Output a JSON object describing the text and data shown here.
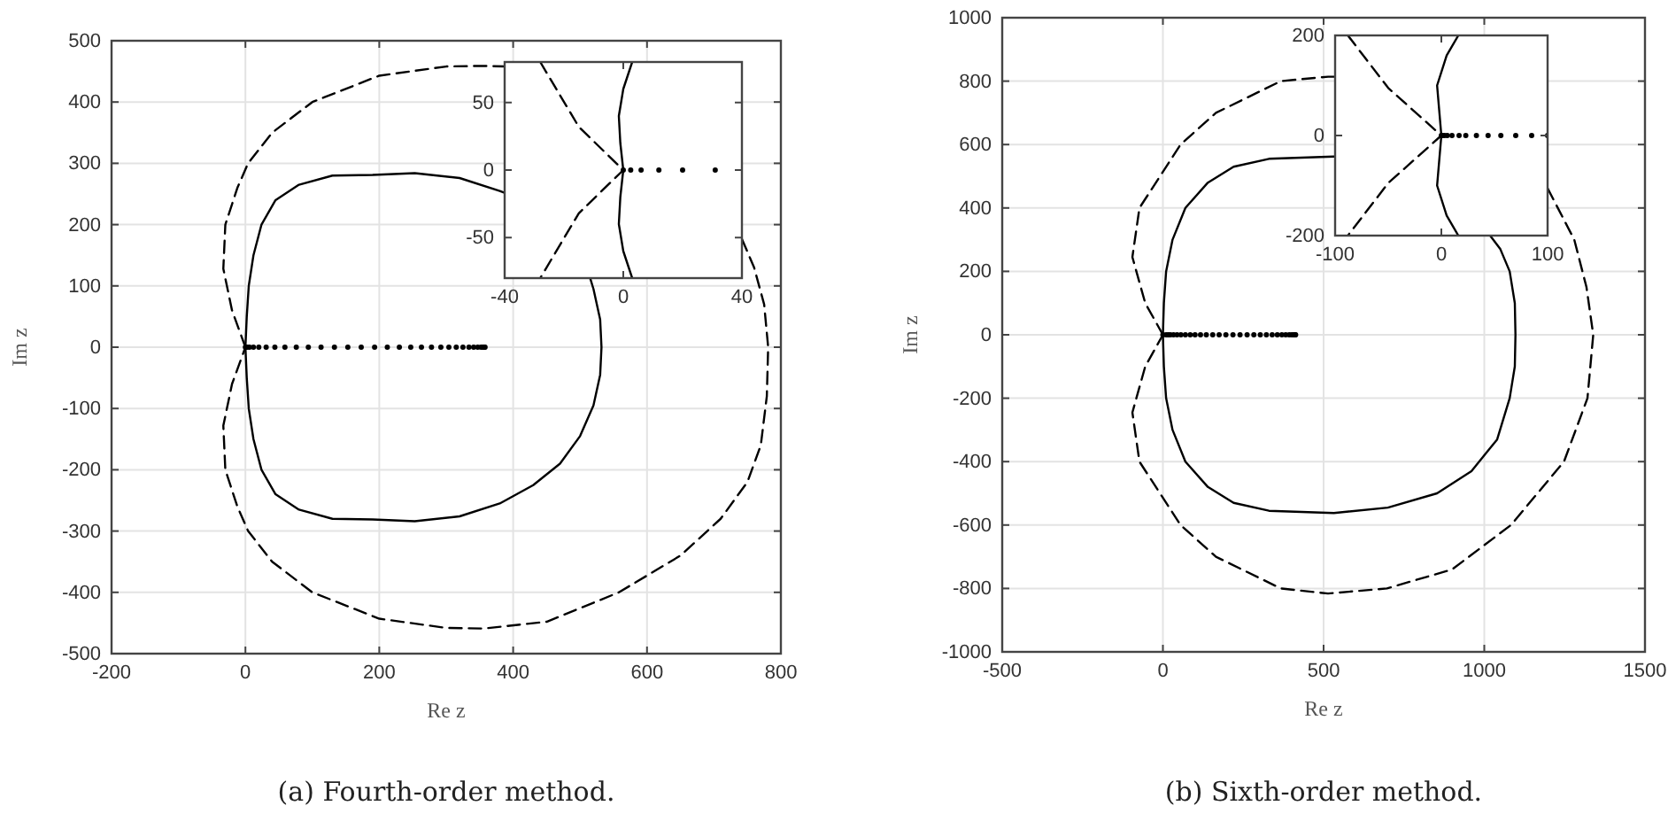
{
  "chart_data": [
    {
      "type": "line",
      "xlabel": "Re z",
      "ylabel": "Im z",
      "xlim": [
        -200,
        800
      ],
      "ylim": [
        -500,
        500
      ],
      "xticks": [
        -200,
        0,
        200,
        400,
        600,
        800
      ],
      "yticks": [
        -500,
        -400,
        -300,
        -200,
        -100,
        0,
        100,
        200,
        300,
        400,
        500
      ],
      "grid": true,
      "annotations": [
        "(a) Fourth-order method."
      ],
      "series": [
        {
          "line_style": "solid",
          "color": "#000000",
          "x": [
            0,
            2,
            5,
            12,
            24,
            45,
            80,
            130,
            190,
            253,
            320,
            380,
            387,
            430,
            470,
            500,
            515,
            520,
            530,
            532,
            530,
            520,
            500,
            470,
            430,
            380,
            320,
            253,
            190,
            130,
            80,
            45,
            24,
            12,
            5,
            2,
            0
          ],
          "values": [
            0,
            50,
            100,
            150,
            200,
            240,
            265,
            280,
            281,
            284,
            276,
            255,
            252,
            null,
            null,
            null,
            113,
            95,
            45,
            0,
            -45,
            -95,
            -145,
            -190,
            -225,
            -255,
            -276,
            -284,
            -281,
            -280,
            -265,
            -240,
            -200,
            -150,
            -100,
            -50,
            0
          ]
        },
        {
          "line_style": "dashed",
          "color": "#000000",
          "x": [
            0,
            -20,
            -33,
            -30,
            -12,
            4,
            40,
            100,
            200,
            300,
            356,
            387,
            450,
            558,
            650,
            710,
            742,
            760,
            775,
            781,
            779,
            770,
            750,
            710,
            650,
            558,
            450,
            356,
            300,
            200,
            100,
            40,
            4,
            -12,
            -30,
            -33,
            -20,
            0
          ],
          "values": [
            0,
            60,
            128,
            200,
            260,
            300,
            350,
            400,
            443,
            458,
            459,
            458,
            null,
            null,
            null,
            null,
            176,
            130,
            70,
            0,
            -80,
            -160,
            -220,
            -280,
            -340,
            -400,
            -448,
            -459,
            -458,
            -443,
            -400,
            -350,
            -300,
            -260,
            -200,
            -128,
            -60,
            0
          ]
        },
        {
          "type": "scatter",
          "marker": "circle",
          "color": "#000000",
          "x": [
            0,
            2.5,
            6,
            12,
            20,
            31,
            44,
            59,
            76,
            94,
            113,
            133,
            153,
            173,
            193,
            212,
            230,
            247,
            263,
            278,
            292,
            304,
            315,
            325,
            334,
            341,
            347,
            352,
            355,
            357,
            358
          ],
          "values": [
            0,
            0,
            0,
            0,
            0,
            0,
            0,
            0,
            0,
            0,
            0,
            0,
            0,
            0,
            0,
            0,
            0,
            0,
            0,
            0,
            0,
            0,
            0,
            0,
            0,
            0,
            0,
            0,
            0,
            0,
            0
          ]
        }
      ]
    },
    {
      "type": "line",
      "xlim": [
        -40,
        40
      ],
      "ylim": [
        -80,
        80
      ],
      "xticks": [
        -40,
        0,
        40
      ],
      "yticks": [
        -50,
        0,
        50
      ],
      "series": [
        {
          "line_style": "solid",
          "color": "#000000",
          "x": [
            3,
            0,
            -1.5,
            -1,
            0,
            -1,
            -1.5,
            0,
            3
          ],
          "values": [
            -80,
            -60,
            -40,
            -20,
            0,
            20,
            40,
            60,
            80
          ]
        },
        {
          "line_style": "dashed",
          "color": "#000000",
          "x": [
            -28,
            -15,
            0,
            -15,
            -28
          ],
          "values": [
            80,
            32,
            0,
            -32,
            -80
          ]
        },
        {
          "type": "scatter",
          "marker": "circle",
          "color": "#000000",
          "x": [
            0,
            2.5,
            6,
            12,
            20,
            31
          ],
          "values": [
            0,
            0,
            0,
            0,
            0,
            0
          ]
        }
      ]
    },
    {
      "type": "line",
      "xlabel": "Re z",
      "ylabel": "Im z",
      "xlim": [
        -500,
        1500
      ],
      "ylim": [
        -1000,
        1000
      ],
      "xticks": [
        -500,
        0,
        500,
        1000,
        1500
      ],
      "yticks": [
        -1000,
        -800,
        -600,
        -400,
        -200,
        0,
        200,
        400,
        600,
        800,
        1000
      ],
      "grid": true,
      "annotations": [
        "(b) Sixth-order method."
      ],
      "series": [
        {
          "line_style": "solid",
          "color": "#000000",
          "x": [
            0,
            3,
            10,
            30,
            70,
            140,
            220,
            330,
            532,
            536,
            700,
            853,
            960,
            1015,
            1050,
            1079,
            1095,
            1097,
            1095,
            1079,
            1040,
            960,
            853,
            700,
            532,
            330,
            220,
            140,
            70,
            30,
            10,
            3,
            0
          ],
          "values": [
            0,
            100,
            200,
            300,
            400,
            480,
            530,
            555,
            562,
            562,
            null,
            null,
            null,
            317,
            270,
            200,
            100,
            0,
            -100,
            -200,
            -330,
            -430,
            -500,
            -545,
            -562,
            -555,
            -530,
            -480,
            -400,
            -300,
            -200,
            -100,
            0
          ]
        },
        {
          "line_style": "dashed",
          "color": "#000000",
          "x": [
            0,
            -55,
            -95,
            -73,
            55,
            165,
            367,
            514,
            536,
            697,
            900,
            1083,
            1197,
            1280,
            1318,
            1339,
            1321,
            1248,
            1083,
            900,
            697,
            514,
            367,
            165,
            55,
            -73,
            -95,
            -55,
            0
          ],
          "values": [
            0,
            100,
            245,
            400,
            600,
            700,
            800,
            814,
            814,
            null,
            null,
            null,
            462,
            300,
            150,
            0,
            -200,
            -400,
            -600,
            -740,
            -800,
            -816,
            -800,
            -700,
            -600,
            -400,
            -245,
            -100,
            0
          ]
        },
        {
          "type": "scatter",
          "marker": "circle",
          "color": "#000000",
          "x": [
            0,
            10,
            16.7,
            23,
            33,
            44,
            56,
            70,
            85,
            100,
            117,
            135,
            155,
            175,
            196,
            218,
            240,
            262,
            283,
            303,
            322,
            340,
            356,
            370,
            382,
            393,
            401,
            407,
            411,
            413
          ],
          "values": [
            0,
            0,
            0,
            0,
            0,
            0,
            0,
            0,
            0,
            0,
            0,
            0,
            0,
            0,
            0,
            0,
            0,
            0,
            0,
            0,
            0,
            0,
            0,
            0,
            0,
            0,
            0,
            0,
            0,
            0
          ]
        }
      ]
    },
    {
      "type": "line",
      "xlim": [
        -100,
        100
      ],
      "ylim": [
        -200,
        200
      ],
      "xticks": [
        -100,
        0,
        100
      ],
      "yticks": [
        -200,
        0,
        200
      ],
      "series": [
        {
          "line_style": "solid",
          "color": "#000000",
          "x": [
            16,
            5,
            -4,
            -2,
            0,
            -2,
            -4,
            5,
            16
          ],
          "values": [
            200,
            160,
            100,
            50,
            0,
            -50,
            -100,
            -160,
            -200
          ]
        },
        {
          "line_style": "dashed",
          "color": "#000000",
          "x": [
            -88,
            -50,
            0,
            -50,
            -88
          ],
          "values": [
            200,
            95,
            0,
            -95,
            -200
          ]
        },
        {
          "type": "scatter",
          "marker": "circle",
          "color": "#000000",
          "x": [
            0,
            1,
            3,
            5.6,
            10,
            16.7,
            23,
            33,
            44,
            56,
            70,
            85,
            100
          ],
          "values": [
            0,
            0,
            0,
            0,
            0,
            0,
            0,
            0,
            0,
            0,
            0,
            0,
            0
          ]
        }
      ]
    }
  ]
}
